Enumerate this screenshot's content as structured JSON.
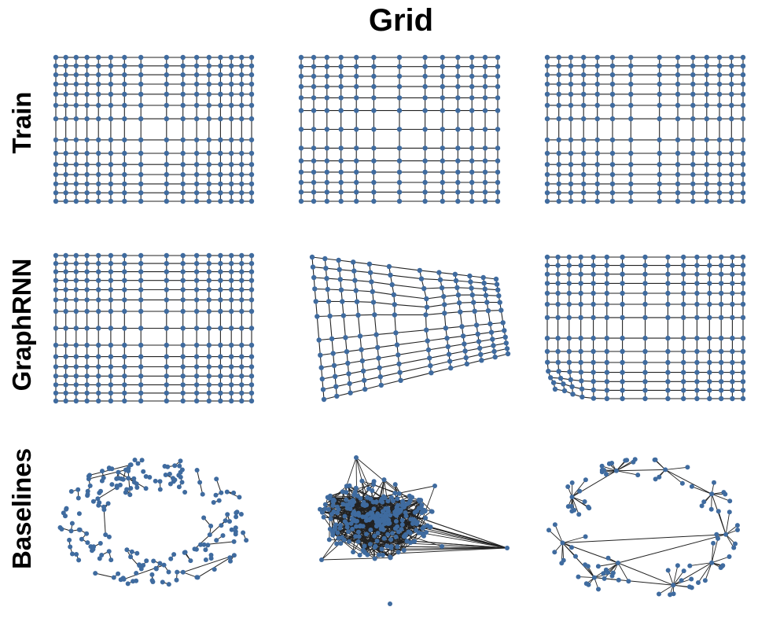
{
  "title": "Grid",
  "rows": [
    {
      "label": "Train"
    },
    {
      "label": "GraphRNN"
    },
    {
      "label": "Baselines"
    }
  ],
  "colors": {
    "node": "#3f6b9f",
    "edge": "#222222",
    "text": "#000000"
  },
  "panels": [
    {
      "row": "Train",
      "kind": "grid"
    },
    {
      "row": "Train",
      "kind": "grid"
    },
    {
      "row": "Train",
      "kind": "grid"
    },
    {
      "row": "GraphRNN",
      "kind": "grid"
    },
    {
      "row": "GraphRNN",
      "kind": "distorted-grid"
    },
    {
      "row": "GraphRNN",
      "kind": "grid-with-defect"
    },
    {
      "row": "Baselines",
      "kind": "sparse-ring-network"
    },
    {
      "row": "Baselines",
      "kind": "dense-cluster"
    },
    {
      "row": "Baselines",
      "kind": "hub-and-spoke-ring"
    }
  ]
}
